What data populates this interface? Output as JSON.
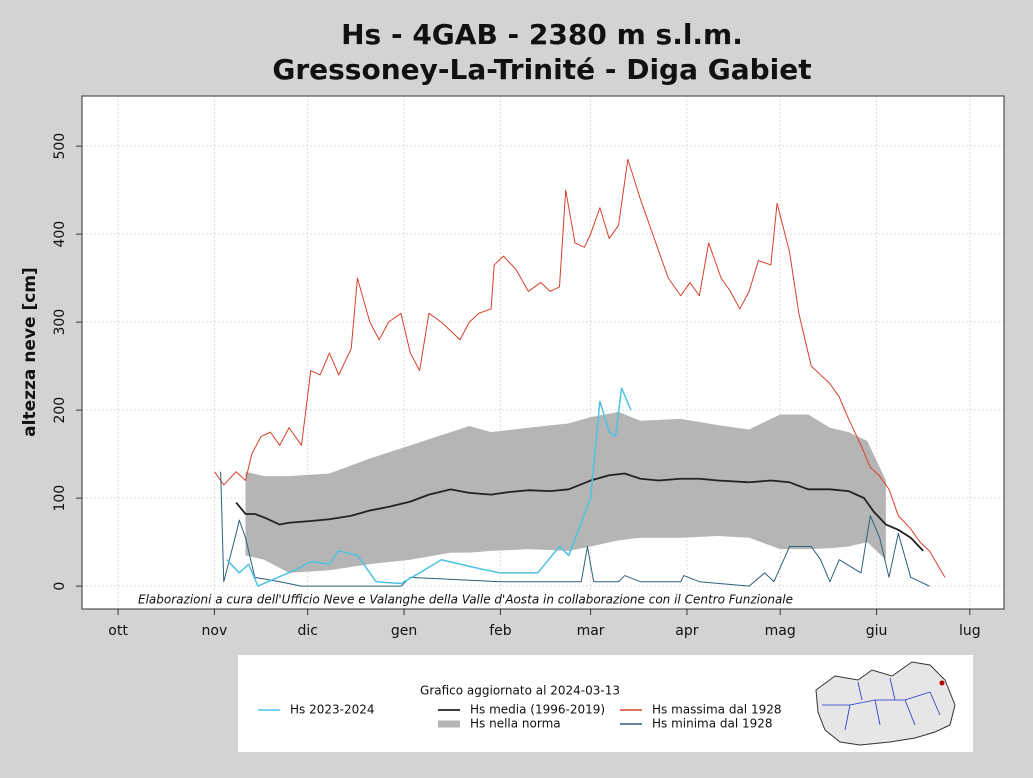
{
  "chart_data": {
    "type": "line",
    "title": "Hs - 4GAB - 2380 m s.l.m.",
    "subtitle": "Gressoney-La-Trinité - Diga Gabiet",
    "y_label": "altezza neve [cm]",
    "annotation": "Elaborazioni a cura dell'Ufficio Neve e Valanghe della Valle d'Aosta in collaborazione con il Centro Funzionale",
    "legend_title": "Grafico aggiornato al 2024-03-13",
    "grid": true,
    "xlim": [
      -11.6,
      285
    ],
    "ylim": [
      -26,
      557
    ],
    "yticks": [
      0,
      100,
      200,
      300,
      400,
      500
    ],
    "xticks": [
      {
        "value": 0,
        "label": "ott"
      },
      {
        "value": 31,
        "label": "nov"
      },
      {
        "value": 61,
        "label": "dic"
      },
      {
        "value": 92,
        "label": "gen"
      },
      {
        "value": 123,
        "label": "feb"
      },
      {
        "value": 152,
        "label": "mar"
      },
      {
        "value": 183,
        "label": "apr"
      },
      {
        "value": 213,
        "label": "mag"
      },
      {
        "value": 244,
        "label": "giu"
      },
      {
        "value": 274,
        "label": "lug"
      }
    ],
    "band": {
      "name": "Hs nella norma",
      "color": "#b5b5b5",
      "x": [
        41,
        47,
        55,
        68,
        81,
        94,
        107,
        113,
        120,
        132,
        145,
        152,
        161,
        168,
        181,
        193,
        203,
        213,
        222,
        229,
        235,
        241,
        247
      ],
      "lower": [
        35,
        30,
        15,
        18,
        25,
        30,
        38,
        38,
        40,
        42,
        40,
        45,
        52,
        55,
        55,
        57,
        55,
        42,
        42,
        43,
        45,
        50,
        30
      ],
      "upper": [
        130,
        125,
        125,
        128,
        145,
        160,
        175,
        182,
        175,
        180,
        185,
        192,
        198,
        188,
        190,
        183,
        178,
        195,
        195,
        180,
        175,
        165,
        120
      ]
    },
    "series": [
      {
        "name": "Hs 2023-2024",
        "color": "#4dc3e3",
        "width": 1.5,
        "x": [
          35,
          39,
          42,
          45,
          58,
          62,
          68,
          71,
          77,
          83,
          91,
          97,
          104,
          110,
          116,
          123,
          135,
          142,
          145,
          152,
          155,
          158,
          160,
          162,
          165
        ],
        "values": [
          30,
          15,
          25,
          0,
          20,
          28,
          25,
          40,
          35,
          5,
          3,
          15,
          30,
          25,
          20,
          15,
          15,
          45,
          35,
          100,
          210,
          175,
          170,
          225,
          200
        ]
      },
      {
        "name": "Hs media (1996-2019)",
        "color": "#222222",
        "width": 1.8,
        "x": [
          38,
          41,
          44,
          47,
          52,
          55,
          62,
          68,
          75,
          81,
          87,
          94,
          100,
          107,
          113,
          120,
          126,
          132,
          139,
          145,
          152,
          158,
          163,
          168,
          174,
          181,
          187,
          193,
          203,
          210,
          216,
          222,
          229,
          235,
          240,
          243,
          247,
          251,
          255,
          259
        ],
        "values": [
          95,
          82,
          82,
          78,
          70,
          72,
          74,
          76,
          80,
          86,
          90,
          96,
          104,
          110,
          106,
          104,
          107,
          109,
          108,
          110,
          120,
          126,
          128,
          122,
          120,
          122,
          122,
          120,
          118,
          120,
          118,
          110,
          110,
          108,
          100,
          85,
          70,
          64,
          55,
          40
        ]
      },
      {
        "name": "Hs massima dal 1928",
        "color": "#d6402c",
        "width": 1,
        "x": [
          31,
          34,
          38,
          41,
          43,
          46,
          49,
          52,
          55,
          59,
          62,
          65,
          68,
          71,
          75,
          77,
          81,
          84,
          87,
          91,
          94,
          97,
          100,
          104,
          110,
          113,
          116,
          120,
          121,
          124,
          128,
          132,
          136,
          139,
          142,
          144,
          147,
          150,
          152,
          155,
          158,
          161,
          164,
          168,
          171,
          174,
          177,
          181,
          184,
          187,
          190,
          194,
          197,
          200,
          203,
          206,
          210,
          212,
          216,
          219,
          223,
          226,
          229,
          232,
          235,
          239,
          242,
          245,
          248,
          251,
          255,
          258,
          261,
          266
        ],
        "values": [
          130,
          115,
          130,
          120,
          150,
          170,
          175,
          160,
          180,
          160,
          245,
          240,
          265,
          240,
          270,
          350,
          300,
          280,
          300,
          310,
          265,
          245,
          310,
          300,
          280,
          300,
          310,
          315,
          365,
          375,
          360,
          335,
          345,
          335,
          340,
          450,
          390,
          385,
          400,
          430,
          395,
          410,
          485,
          440,
          410,
          380,
          350,
          330,
          345,
          330,
          390,
          350,
          335,
          315,
          335,
          370,
          365,
          435,
          380,
          310,
          250,
          240,
          230,
          215,
          190,
          160,
          135,
          125,
          110,
          80,
          65,
          50,
          40,
          10
        ]
      },
      {
        "name": "Hs minima dal 1928",
        "color": "#2f5f7c",
        "width": 1,
        "x": [
          33,
          34,
          38,
          39,
          41,
          44,
          52,
          59,
          91,
          94,
          123,
          149,
          151,
          153,
          161,
          163,
          168,
          181,
          182,
          187,
          203,
          208,
          211,
          216,
          223,
          226,
          229,
          232,
          239,
          242,
          245,
          248,
          251,
          253,
          255,
          258,
          261
        ],
        "values": [
          130,
          5,
          60,
          75,
          55,
          10,
          5,
          0,
          0,
          10,
          5,
          5,
          45,
          5,
          5,
          12,
          5,
          5,
          12,
          5,
          0,
          15,
          5,
          45,
          45,
          30,
          5,
          30,
          15,
          80,
          55,
          10,
          60,
          35,
          10,
          5,
          0
        ]
      }
    ]
  }
}
